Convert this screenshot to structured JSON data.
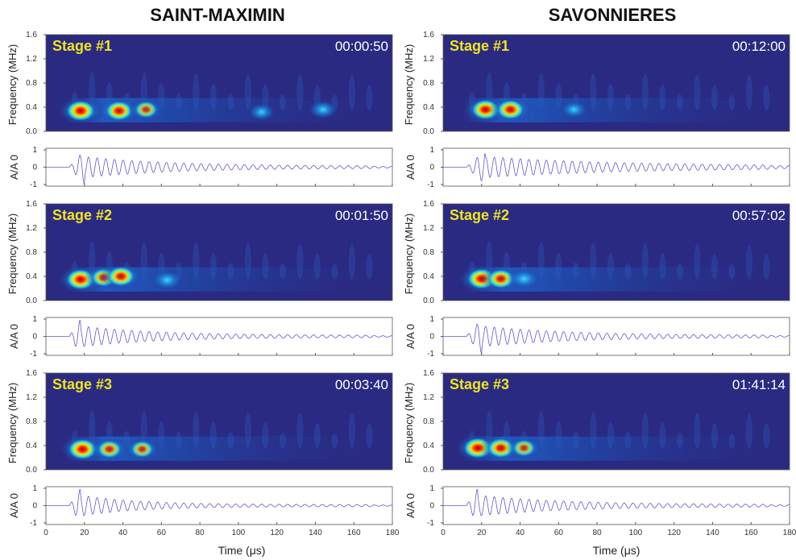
{
  "chart_data": [
    {
      "type": "heatmap",
      "column_title": "SAINT-MAXIMIN",
      "xlabel": "Time (μs)",
      "xlim": [
        0,
        180
      ],
      "xticks": [
        0,
        20,
        40,
        60,
        80,
        100,
        120,
        140,
        160,
        180
      ],
      "colors": {
        "background": "#2a2a82",
        "wave": "#5a5ad0"
      },
      "stages": [
        {
          "label": "Stage #1",
          "time": "00:00:50",
          "ylabel": "Frequency (MHz)",
          "ylim": [
            0,
            1.6
          ],
          "yticks": [
            "0.0",
            "0.4",
            "0.8",
            "1.2",
            "1.6"
          ],
          "blobs": [
            {
              "t": 18,
              "f": 0.34,
              "intensity": 1.0
            },
            {
              "t": 38,
              "f": 0.34,
              "intensity": 0.9
            },
            {
              "t": 52,
              "f": 0.36,
              "intensity": 0.6
            },
            {
              "t": 112,
              "f": 0.32,
              "intensity": 0.3
            },
            {
              "t": 144,
              "f": 0.36,
              "intensity": 0.4
            }
          ],
          "wave_ylabel": "A/A 0",
          "wave_ylim": [
            -1,
            1
          ],
          "wave_yticks": [
            "-1",
            "0",
            "1"
          ],
          "wave": {
            "onset": 12,
            "peak_t": 20,
            "decay": 45,
            "period": 4.5
          }
        },
        {
          "label": "Stage #2",
          "time": "00:01:50",
          "ylabel": "Frequency (MHz)",
          "ylim": [
            0,
            1.6
          ],
          "yticks": [
            "0.0",
            "0.4",
            "0.8",
            "1.2",
            "1.6"
          ],
          "blobs": [
            {
              "t": 18,
              "f": 0.35,
              "intensity": 1.0
            },
            {
              "t": 30,
              "f": 0.38,
              "intensity": 0.75
            },
            {
              "t": 39,
              "f": 0.4,
              "intensity": 0.9
            },
            {
              "t": 63,
              "f": 0.34,
              "intensity": 0.45
            }
          ],
          "wave_ylabel": "A/A 0",
          "wave_ylim": [
            -1,
            1
          ],
          "wave_yticks": [
            "-1",
            "0",
            "1"
          ],
          "wave": {
            "onset": 12,
            "peak_t": 18,
            "decay": 40,
            "period": 4.5
          }
        },
        {
          "label": "Stage #3",
          "time": "00:03:40",
          "ylabel": "Frequency (MHz)",
          "ylim": [
            0,
            1.6
          ],
          "yticks": [
            "0.0",
            "0.4",
            "0.8",
            "1.2",
            "1.6"
          ],
          "blobs": [
            {
              "t": 19,
              "f": 0.34,
              "intensity": 1.0
            },
            {
              "t": 33,
              "f": 0.34,
              "intensity": 0.7
            },
            {
              "t": 50,
              "f": 0.34,
              "intensity": 0.6
            }
          ],
          "wave_ylabel": "A/A 0",
          "wave_ylim": [
            -1,
            1
          ],
          "wave_yticks": [
            "-1",
            "0",
            "1"
          ],
          "wave": {
            "onset": 12,
            "peak_t": 18,
            "decay": 30,
            "period": 4.5
          }
        }
      ]
    },
    {
      "type": "heatmap",
      "column_title": "SAVONNIERES",
      "xlabel": "Time (μs)",
      "xlim": [
        0,
        180
      ],
      "xticks": [
        0,
        20,
        40,
        60,
        80,
        100,
        120,
        140,
        160,
        180
      ],
      "colors": {
        "background": "#2a2a82",
        "wave": "#5a5ad0"
      },
      "stages": [
        {
          "label": "Stage #1",
          "time": "00:12:00",
          "ylabel": "Frequency (MHz)",
          "ylim": [
            0,
            1.6
          ],
          "yticks": [
            "0.0",
            "0.4",
            "0.8",
            "1.2",
            "1.6"
          ],
          "blobs": [
            {
              "t": 22,
              "f": 0.36,
              "intensity": 0.95
            },
            {
              "t": 35,
              "f": 0.36,
              "intensity": 0.9
            },
            {
              "t": 68,
              "f": 0.36,
              "intensity": 0.3
            }
          ],
          "wave_ylabel": "A/A 0",
          "wave_ylim": [
            -1,
            1
          ],
          "wave_yticks": [
            "-1",
            "0",
            "1"
          ],
          "wave": {
            "onset": 12,
            "peak_t": 22,
            "decay": 70,
            "period": 4.5
          }
        },
        {
          "label": "Stage #2",
          "time": "00:57:02",
          "ylabel": "Frequency (MHz)",
          "ylim": [
            0,
            1.6
          ],
          "yticks": [
            "0.0",
            "0.4",
            "0.8",
            "1.2",
            "1.6"
          ],
          "blobs": [
            {
              "t": 20,
              "f": 0.36,
              "intensity": 1.0
            },
            {
              "t": 30,
              "f": 0.36,
              "intensity": 0.85
            },
            {
              "t": 42,
              "f": 0.36,
              "intensity": 0.5
            }
          ],
          "wave_ylabel": "A/A 0",
          "wave_ylim": [
            -1,
            1
          ],
          "wave_yticks": [
            "-1",
            "0",
            "1"
          ],
          "wave": {
            "onset": 12,
            "peak_t": 20,
            "decay": 45,
            "period": 4.5
          }
        },
        {
          "label": "Stage #3",
          "time": "01:41:14",
          "ylabel": "Frequency (MHz)",
          "ylim": [
            0,
            1.6
          ],
          "yticks": [
            "0.0",
            "0.4",
            "0.8",
            "1.2",
            "1.6"
          ],
          "blobs": [
            {
              "t": 18,
              "f": 0.36,
              "intensity": 1.0
            },
            {
              "t": 30,
              "f": 0.36,
              "intensity": 0.9
            },
            {
              "t": 42,
              "f": 0.36,
              "intensity": 0.6
            }
          ],
          "wave_ylabel": "A/A 0",
          "wave_ylim": [
            -1,
            1
          ],
          "wave_yticks": [
            "-1",
            "0",
            "1"
          ],
          "wave": {
            "onset": 12,
            "peak_t": 18,
            "decay": 45,
            "period": 4.5
          }
        }
      ]
    }
  ]
}
